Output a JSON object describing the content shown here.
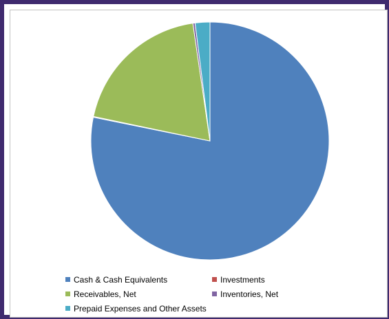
{
  "chart_data": {
    "type": "pie",
    "title": "",
    "start_angle_deg": 0,
    "direction": "clockwise",
    "slices": [
      {
        "name": "Cash & Cash Equivalents",
        "value": 78.2,
        "color": "#4f81bd"
      },
      {
        "name": "Investments",
        "value": 0.1,
        "color": "#c0504d"
      },
      {
        "name": "Receivables, Net",
        "value": 19.4,
        "color": "#9bbb59"
      },
      {
        "name": "Inventories, Net",
        "value": 0.3,
        "color": "#8064a2"
      },
      {
        "name": "Prepaid Expenses and Other Assets",
        "value": 2.0,
        "color": "#4bacc6"
      }
    ],
    "legend_position": "bottom"
  }
}
